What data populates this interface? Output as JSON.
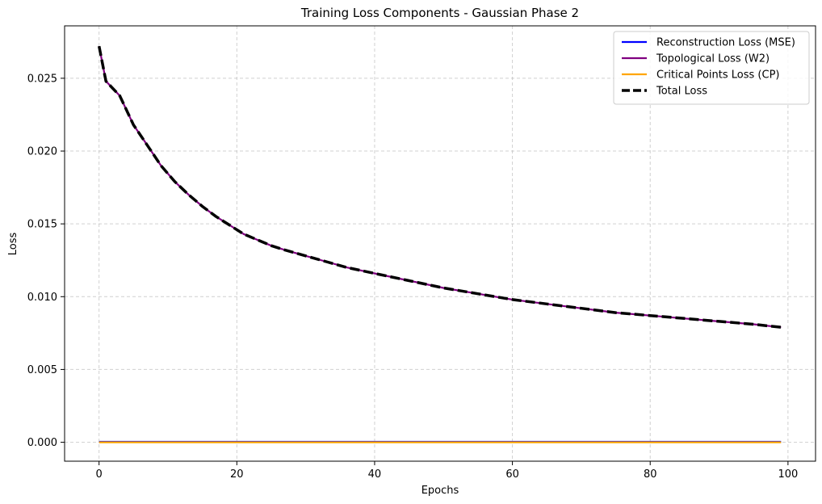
{
  "chart_data": {
    "type": "line",
    "title": "Training Loss Components - Gaussian Phase 2",
    "xlabel": "Epochs",
    "ylabel": "Loss",
    "xlim": [
      -5,
      104
    ],
    "ylim": [
      -0.0013,
      0.0286
    ],
    "xticks": [
      0,
      20,
      40,
      60,
      80,
      100
    ],
    "xtick_labels": [
      "0",
      "20",
      "40",
      "60",
      "80",
      "100"
    ],
    "yticks": [
      0.0,
      0.005,
      0.01,
      0.015,
      0.02,
      0.025
    ],
    "ytick_labels": [
      "0.000",
      "0.005",
      "0.010",
      "0.015",
      "0.020",
      "0.025"
    ],
    "grid": true,
    "legend_position": "top-right",
    "x": [
      0,
      1,
      3,
      5,
      7,
      9,
      11,
      13,
      15,
      17,
      19,
      21,
      23,
      25,
      27,
      30,
      33,
      36,
      40,
      45,
      50,
      55,
      60,
      65,
      70,
      75,
      80,
      85,
      90,
      95,
      99
    ],
    "series": [
      {
        "name": "Reconstruction Loss (MSE)",
        "color": "#0000ff",
        "style": "solid",
        "values": [
          3e-05,
          3e-05,
          3e-05,
          3e-05,
          3e-05,
          3e-05,
          3e-05,
          3e-05,
          3e-05,
          3e-05,
          3e-05,
          3e-05,
          3e-05,
          3e-05,
          3e-05,
          3e-05,
          3e-05,
          3e-05,
          3e-05,
          3e-05,
          3e-05,
          3e-05,
          3e-05,
          3e-05,
          3e-05,
          3e-05,
          3e-05,
          3e-05,
          3e-05,
          3e-05,
          3e-05
        ]
      },
      {
        "name": "Topological Loss (W2)",
        "color": "#800080",
        "style": "solid",
        "values": [
          0.0272,
          0.0248,
          0.0238,
          0.0218,
          0.0204,
          0.019,
          0.0179,
          0.017,
          0.0162,
          0.0155,
          0.0149,
          0.0143,
          0.0139,
          0.0135,
          0.0132,
          0.0128,
          0.0124,
          0.012,
          0.0116,
          0.0111,
          0.0106,
          0.0102,
          0.0098,
          0.0095,
          0.0092,
          0.0089,
          0.0087,
          0.0085,
          0.0083,
          0.0081,
          0.0079
        ]
      },
      {
        "name": "Critical Points Loss (CP)",
        "color": "#ffa500",
        "style": "solid",
        "values": [
          0.0,
          0.0,
          0.0,
          0.0,
          0.0,
          0.0,
          0.0,
          0.0,
          0.0,
          0.0,
          0.0,
          0.0,
          0.0,
          0.0,
          0.0,
          0.0,
          0.0,
          0.0,
          0.0,
          0.0,
          0.0,
          0.0,
          0.0,
          0.0,
          0.0,
          0.0,
          0.0,
          0.0,
          0.0,
          0.0,
          0.0
        ]
      },
      {
        "name": "Total Loss",
        "color": "#000000",
        "style": "dashed",
        "values": [
          0.0272,
          0.0248,
          0.0238,
          0.0218,
          0.0204,
          0.019,
          0.0179,
          0.017,
          0.0162,
          0.0155,
          0.0149,
          0.0143,
          0.0139,
          0.0135,
          0.0132,
          0.0128,
          0.0124,
          0.012,
          0.0116,
          0.0111,
          0.0106,
          0.0102,
          0.0098,
          0.0095,
          0.0092,
          0.0089,
          0.0087,
          0.0085,
          0.0083,
          0.0081,
          0.0079
        ]
      }
    ]
  }
}
